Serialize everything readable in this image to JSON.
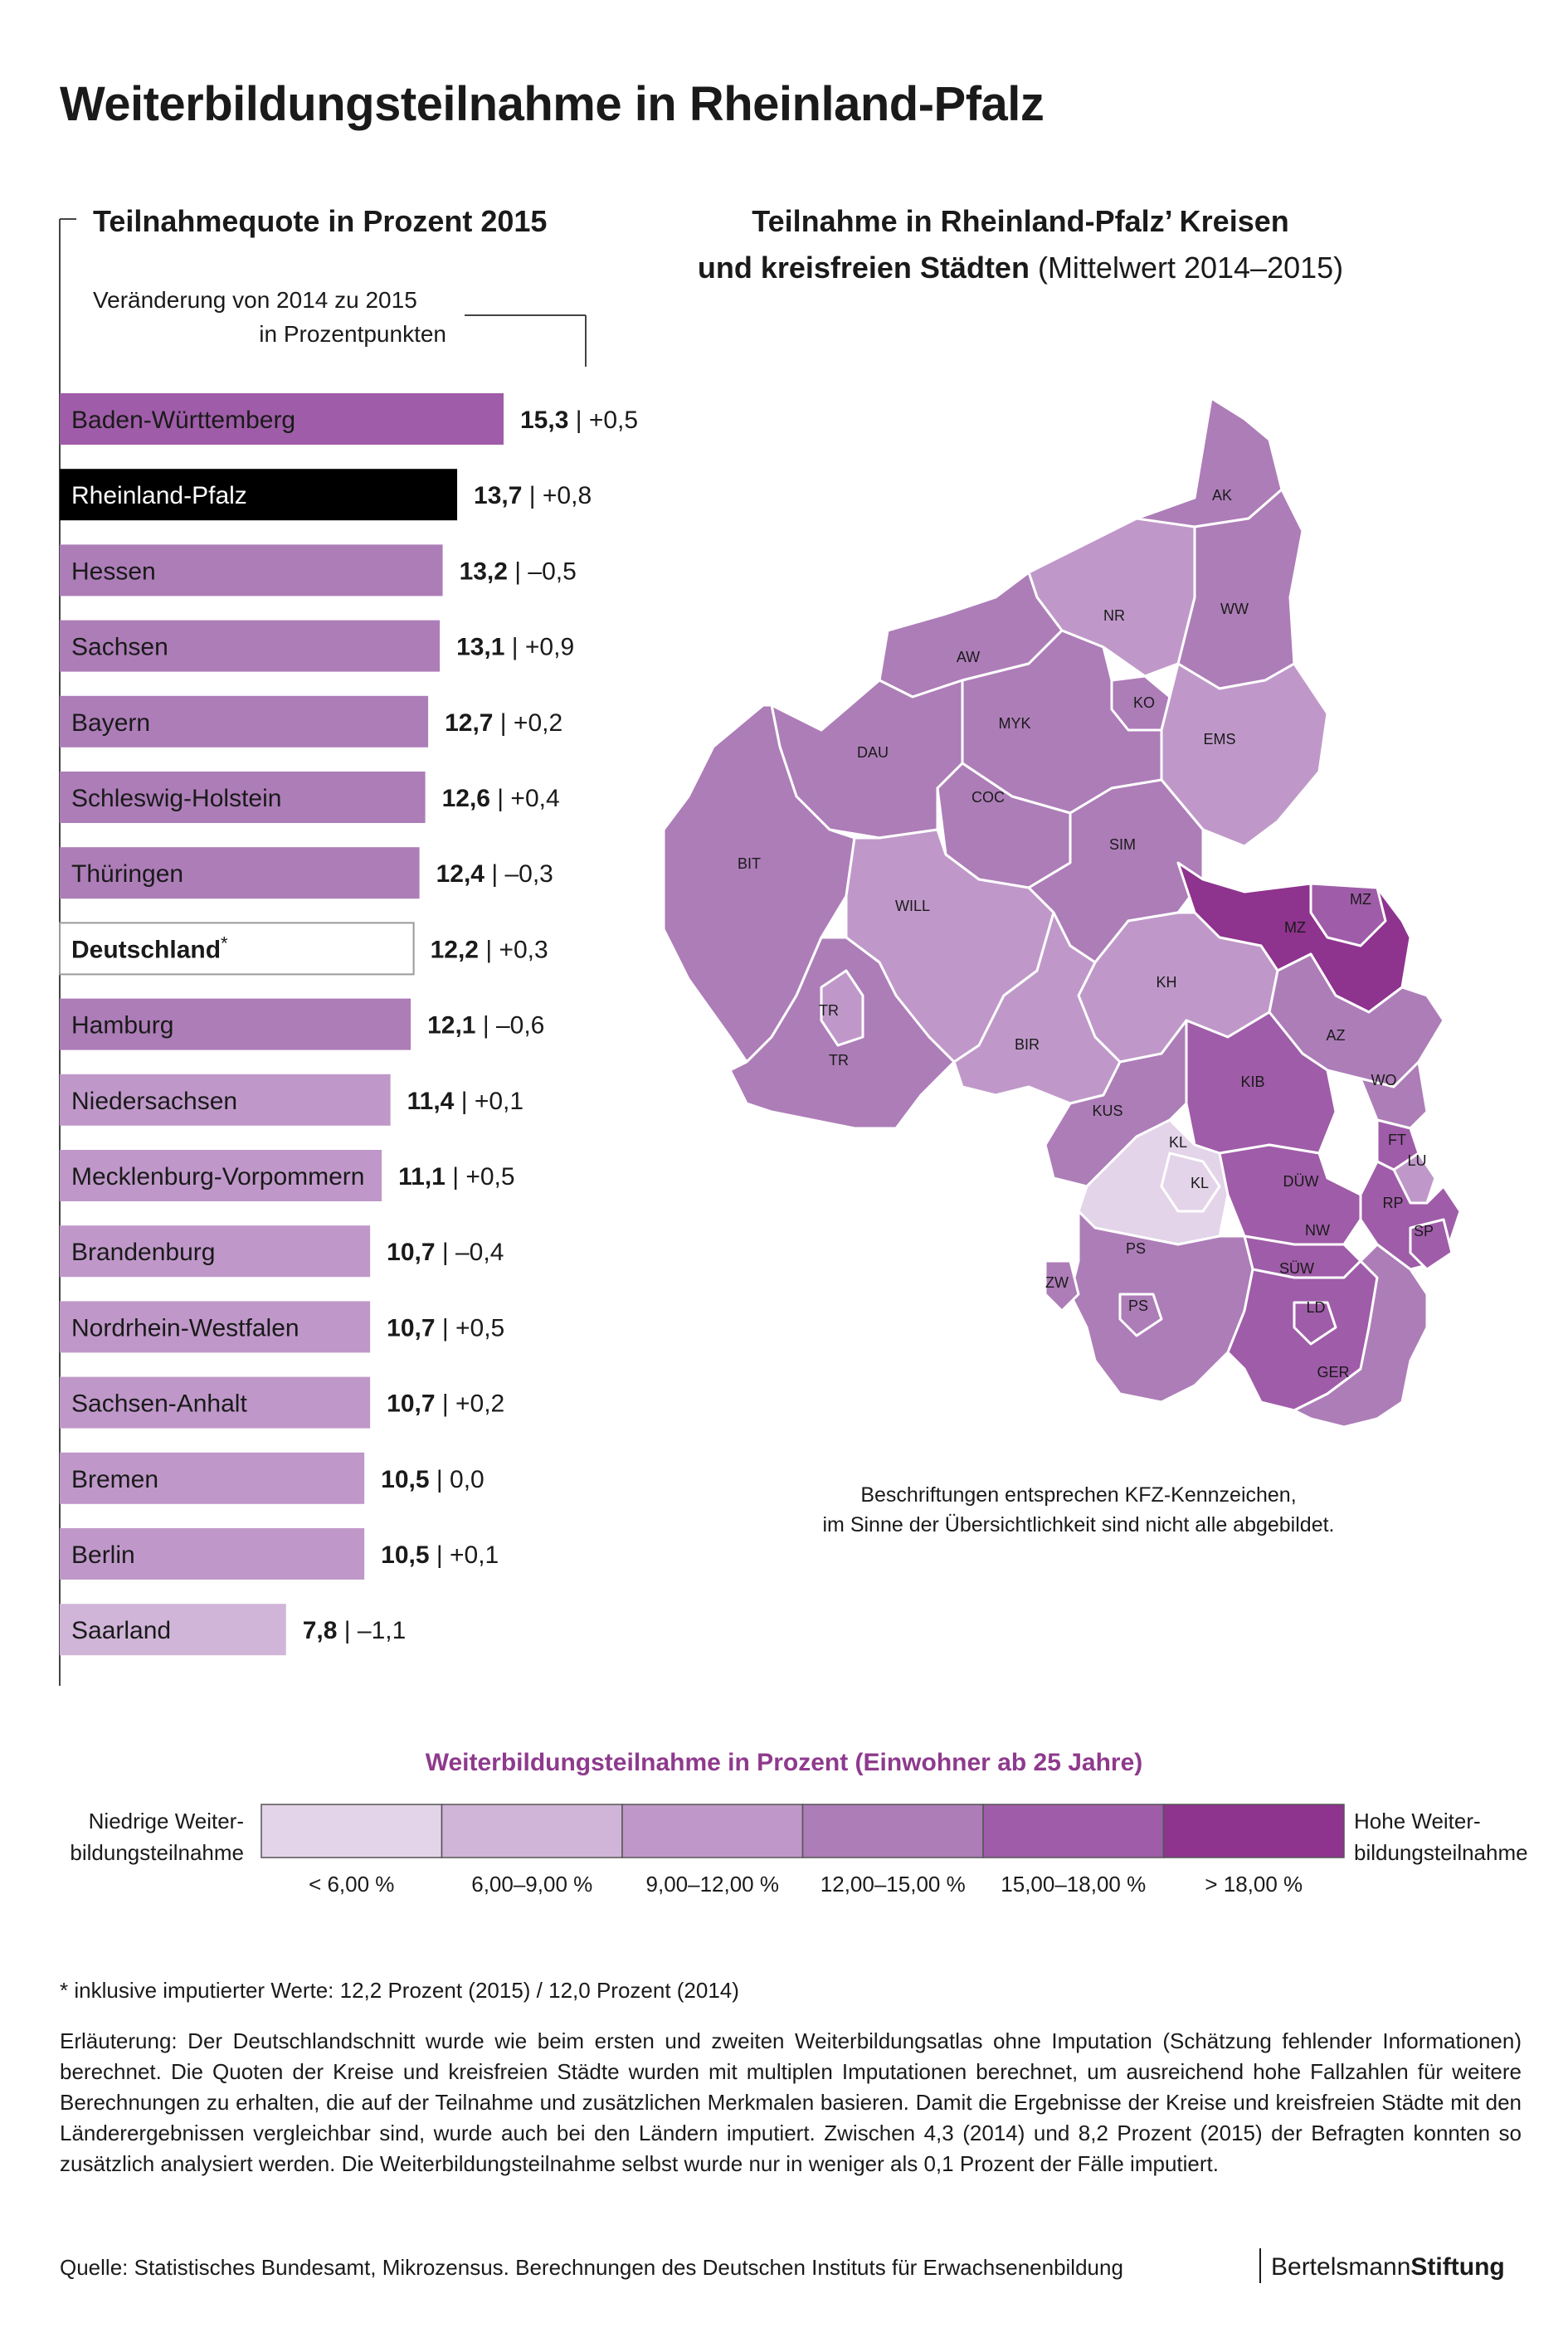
{
  "title": "Weiterbildungsteilnahme in Rheinland-Pfalz",
  "left_panel": {
    "title": "Teilnahmequote in Prozent 2015",
    "change_label_line1": "Veränderung von 2014 zu 2015",
    "change_label_line2": "in Prozentpunkten"
  },
  "map_panel": {
    "title_line1": "Teilnahme in Rheinland-Pfalz’ Kreisen",
    "title_line2_bold": "und kreisfreien Städten",
    "title_line2_rest": " (Mittelwert 2014–2015)",
    "note_line1": "Beschriftungen entsprechen KFZ-Kennzeichen,",
    "note_line2": "im Sinne der Übersichtlichkeit sind nicht alle abgebildet.",
    "labels": [
      "AK",
      "NR",
      "WW",
      "AW",
      "KO",
      "MYK",
      "EMS",
      "DAU",
      "COC",
      "SIM",
      "BIT",
      "WILL",
      "MZ",
      "MZ",
      "KH",
      "TR",
      "TR",
      "BIR",
      "AZ",
      "KIB",
      "WO",
      "KUS",
      "KL",
      "KL",
      "FT",
      "LU",
      "DÜW",
      "RP",
      "NW",
      "SP",
      "PS",
      "SÜW",
      "ZW",
      "PS",
      "LD",
      "GER"
    ]
  },
  "chart_data": {
    "type": "bar",
    "orientation": "horizontal",
    "categories": [
      "Baden-Württemberg",
      "Rheinland-Pfalz",
      "Hessen",
      "Sachsen",
      "Bayern",
      "Schleswig-Holstein",
      "Thüringen",
      "Deutschland",
      "Hamburg",
      "Niedersachsen",
      "Mecklenburg-Vorpommern",
      "Brandenburg",
      "Nordrhein-Westfalen",
      "Sachsen-Anhalt",
      "Bremen",
      "Berlin",
      "Saarland"
    ],
    "values": [
      15.3,
      13.7,
      13.2,
      13.1,
      12.7,
      12.6,
      12.4,
      12.2,
      12.1,
      11.4,
      11.1,
      10.7,
      10.7,
      10.7,
      10.5,
      10.5,
      7.8
    ],
    "value_labels": [
      "15,3",
      "13,7",
      "13,2",
      "13,1",
      "12,7",
      "12,6",
      "12,4",
      "12,2",
      "12,1",
      "11,4",
      "11,1",
      "10,7",
      "10,7",
      "10,7",
      "10,5",
      "10,5",
      "7,8"
    ],
    "changes": [
      "+0,5",
      "+0,8",
      "–0,5",
      "+0,9",
      "+0,2",
      "+0,4",
      "–0,3",
      "+0,3",
      "–0,6",
      " +0,1",
      "+0,5",
      "–0,4",
      "+0,5",
      "+0,2",
      "0,0",
      "+0,1",
      "–1,1"
    ],
    "highlight": {
      "Rheinland-Pfalz": "black",
      "Deutschland": "outline"
    },
    "asterisk_on": "Deutschland",
    "colors": {
      "black": "#000000",
      "outline": "#ffffff"
    }
  },
  "legend": {
    "title": "Weiterbildungsteilnahme in Prozent (Einwohner ab 25 Jahre)",
    "low_line1": "Niedrige Weiter-",
    "low_line2": "bildungsteilnahme",
    "high_line1": "Hohe Weiter-",
    "high_line2": "bildungsteilnahme",
    "classes": [
      {
        "label": "< 6,00 %",
        "color": "#e3d4e9"
      },
      {
        "label": "6,00–9,00 %",
        "color": "#d0b5d8"
      },
      {
        "label": "9,00–12,00 %",
        "color": "#bf98c9"
      },
      {
        "label": "12,00–15,00 %",
        "color": "#ad7db8"
      },
      {
        "label": "15,00–18,00 %",
        "color": "#9f5ca8"
      },
      {
        "label": "> 18,00 %",
        "color": "#8e338e"
      }
    ]
  },
  "footnote": "* inklusive imputierter Werte: 12,2 Prozent (2015) / 12,0 Prozent (2014)",
  "note": "Erläuterung: Der Deutschlandschnitt wurde wie beim ersten und zweiten Weiterbildungsatlas ohne Imputation (Schätzung fehlender Informationen) berechnet. Die Quoten der Kreise und kreisfreien Städte wurden mit multiplen Imputationen berechnet, um ausreichend hohe Fallzahlen für weitere Berechnungen zu erhalten, die auf der Teilnahme und zusätzlichen Merkmalen basieren. Damit die Ergebnisse der Kreise und kreisfreien Städte mit den Länderergebnissen vergleichbar sind, wurde auch bei den Ländern imputiert. Zwischen 4,3 (2014) und 8,2 Prozent (2015) der Befragten konnten so zusätzlich analysiert werden. Die Weiterbildungsteilnahme selbst wurde nur in weniger als 0,1 Prozent der Fälle imputiert.",
  "source": "Quelle: Statistisches Bundesamt, Mikrozensus. Berechnungen des Deutschen Instituts für Erwachsenenbildung",
  "brand": {
    "part1": "Bertelsmann",
    "part2": "Stiftung"
  }
}
